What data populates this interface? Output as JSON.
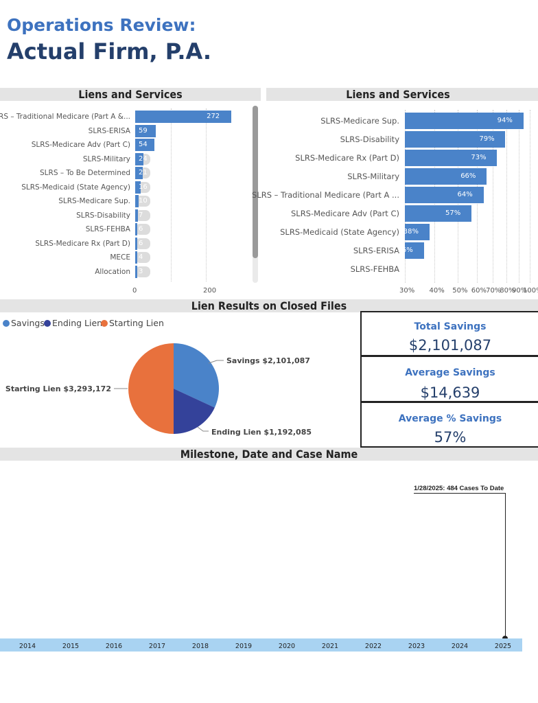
{
  "header": {
    "title_line1": "Operations Review:",
    "title_line2": "Actual Firm, P.A."
  },
  "left_chart": {
    "title": "Liens and Services",
    "categories": [
      "SLRS – Traditional Medicare (Part A &...",
      "SLRS-ERISA",
      "SLRS-Medicare Adv (Part C)",
      "SLRS-Military",
      "SLRS – To Be Determined",
      "SLRS-Medicaid (State Agency)",
      "SLRS-Medicare Sup.",
      "SLRS-Disability",
      "SLRS-FEHBA",
      "SLRS-Medicare Rx (Part D)",
      "MECE",
      "Allocation"
    ],
    "value_labels": [
      "272",
      "59",
      "54",
      "24",
      "21",
      "16",
      "10",
      "7",
      "6",
      "6",
      "4",
      "3"
    ],
    "ticks": [
      "0",
      "200"
    ]
  },
  "right_chart": {
    "title": "Liens and Services",
    "categories": [
      "SLRS-Medicare Sup.",
      "SLRS-Disability",
      "SLRS-Medicare Rx (Part D)",
      "SLRS-Military",
      "SLRS – Traditional Medicare (Part A ...",
      "SLRS-Medicare Adv (Part C)",
      "SLRS-Medicaid (State Agency)",
      "SLRS-ERISA",
      "SLRS-FEHBA"
    ],
    "value_labels": [
      "94%",
      "79%",
      "73%",
      "66%",
      "64%",
      "57%",
      "38%",
      "36%",
      ""
    ],
    "ticks": [
      "30%",
      "40%",
      "50%",
      "60%",
      "70%",
      "80%",
      "90%",
      "100%"
    ]
  },
  "pie_section": {
    "title": "Lien Results on Closed Files",
    "legend": [
      {
        "label": "Savings",
        "color": "#4a83c9"
      },
      {
        "label": "Ending Lien",
        "color": "#34429a"
      },
      {
        "label": "Starting Lien",
        "color": "#e8713d"
      }
    ],
    "labels": {
      "savings": "Savings $2,101,087",
      "ending": "Ending Lien $1,192,085",
      "starting": "Starting Lien $3,293,172"
    }
  },
  "kpis": [
    {
      "label": "Total Savings",
      "value": "$2,101,087"
    },
    {
      "label": "Average Savings",
      "value": "$14,639"
    },
    {
      "label": "Average % Savings",
      "value": "57%"
    }
  ],
  "timeline": {
    "title": "Milestone, Date and Case Name",
    "annotation": "1/28/2025: 484 Cases To Date",
    "years": [
      "2014",
      "2015",
      "2016",
      "2017",
      "2018",
      "2019",
      "2020",
      "2021",
      "2022",
      "2023",
      "2024",
      "2025"
    ]
  },
  "chart_data": [
    {
      "type": "bar",
      "title": "Liens and Services",
      "orientation": "horizontal",
      "categories": [
        "SLRS – Traditional Medicare (Part A &...",
        "SLRS-ERISA",
        "SLRS-Medicare Adv (Part C)",
        "SLRS-Military",
        "SLRS – To Be Determined",
        "SLRS-Medicaid (State Agency)",
        "SLRS-Medicare Sup.",
        "SLRS-Disability",
        "SLRS-FEHBA",
        "SLRS-Medicare Rx (Part D)",
        "MECE",
        "Allocation"
      ],
      "values": [
        272,
        59,
        54,
        24,
        21,
        16,
        10,
        7,
        6,
        6,
        4,
        3
      ],
      "xlim": [
        0,
        300
      ]
    },
    {
      "type": "bar",
      "title": "Liens and Services",
      "orientation": "horizontal",
      "categories": [
        "SLRS-Medicare Sup.",
        "SLRS-Disability",
        "SLRS-Medicare Rx (Part D)",
        "SLRS-Military",
        "SLRS – Traditional Medicare (Part A ...",
        "SLRS-Medicare Adv (Part C)",
        "SLRS-Medicaid (State Agency)",
        "SLRS-ERISA",
        "SLRS-FEHBA"
      ],
      "values": [
        94,
        79,
        73,
        66,
        64,
        57,
        38,
        36,
        null
      ],
      "unit": "%",
      "scale": "log",
      "xlim": [
        30,
        100
      ]
    },
    {
      "type": "pie",
      "title": "Lien Results on Closed Files",
      "categories": [
        "Savings",
        "Ending Lien",
        "Starting Lien"
      ],
      "values": [
        2101087,
        1192085,
        3293172
      ]
    }
  ]
}
